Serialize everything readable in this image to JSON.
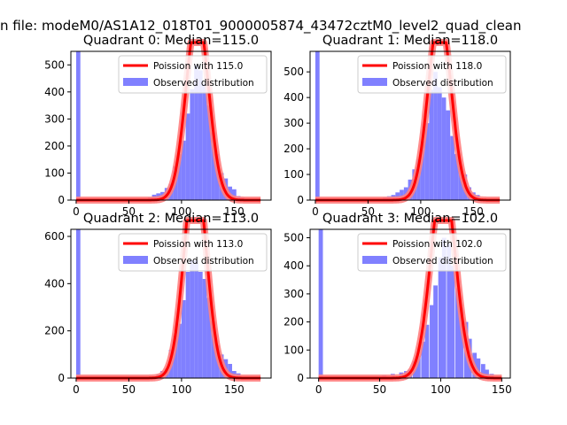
{
  "figure": {
    "suptitle": "n file: modeM0/AS1A12_018T01_9000005874_43472cztM0_level2_quad_clean"
  },
  "colors": {
    "fit": "#ff0000",
    "fit_glow": "#ff8080",
    "hist": "#8080ff",
    "axis": "#000000"
  },
  "chart_data": [
    {
      "type": "bar",
      "title": "Quadrant 0: Median=115.0",
      "legend": [
        "Poission with 115.0",
        "Observed distribution"
      ],
      "legend_loc": "upper right",
      "xlim": [
        -5,
        185
      ],
      "ylim": [
        0,
        550
      ],
      "xticks": [
        0,
        50,
        100,
        150
      ],
      "yticks": [
        0,
        100,
        200,
        300,
        400,
        500
      ],
      "bin_width": 4,
      "bins": [
        [
          0,
          550
        ],
        [
          64,
          2
        ],
        [
          68,
          10
        ],
        [
          72,
          20
        ],
        [
          76,
          25
        ],
        [
          80,
          30
        ],
        [
          84,
          45
        ],
        [
          88,
          60
        ],
        [
          92,
          125
        ],
        [
          96,
          170
        ],
        [
          100,
          220
        ],
        [
          104,
          320
        ],
        [
          108,
          410
        ],
        [
          112,
          500
        ],
        [
          116,
          480
        ],
        [
          120,
          430
        ],
        [
          124,
          350
        ],
        [
          128,
          250
        ],
        [
          132,
          170
        ],
        [
          136,
          100
        ],
        [
          140,
          80
        ],
        [
          144,
          50
        ],
        [
          148,
          40
        ],
        [
          152,
          15
        ],
        [
          156,
          10
        ]
      ],
      "fit": {
        "mu": 115,
        "scale": 18400,
        "x_range": [
          0,
          175
        ]
      }
    },
    {
      "type": "bar",
      "title": "Quadrant 1: Median=118.0",
      "legend": [
        "Poission with 118.0",
        "Observed distribution"
      ],
      "legend_loc": "upper right",
      "xlim": [
        -5,
        185
      ],
      "ylim": [
        0,
        580
      ],
      "xticks": [
        0,
        50,
        100,
        150
      ],
      "yticks": [
        0,
        100,
        200,
        300,
        400,
        500
      ],
      "bin_width": 4,
      "bins": [
        [
          0,
          580
        ],
        [
          56,
          5
        ],
        [
          64,
          10
        ],
        [
          68,
          15
        ],
        [
          72,
          20
        ],
        [
          76,
          30
        ],
        [
          80,
          40
        ],
        [
          84,
          50
        ],
        [
          88,
          80
        ],
        [
          92,
          120
        ],
        [
          96,
          160
        ],
        [
          100,
          230
        ],
        [
          104,
          300
        ],
        [
          108,
          430
        ],
        [
          112,
          500
        ],
        [
          116,
          440
        ],
        [
          120,
          400
        ],
        [
          124,
          350
        ],
        [
          128,
          250
        ],
        [
          132,
          180
        ],
        [
          136,
          130
        ],
        [
          140,
          100
        ],
        [
          144,
          50
        ],
        [
          148,
          30
        ],
        [
          152,
          20
        ],
        [
          156,
          5
        ]
      ],
      "fit": {
        "mu": 118,
        "scale": 19700,
        "x_range": [
          0,
          175
        ]
      }
    },
    {
      "type": "bar",
      "title": "Quadrant 2: Median=113.0",
      "legend": [
        "Poission with 113.0",
        "Observed distribution"
      ],
      "legend_loc": "upper right",
      "xlim": [
        -5,
        185
      ],
      "ylim": [
        0,
        630
      ],
      "xticks": [
        0,
        50,
        100,
        150
      ],
      "yticks": [
        0,
        200,
        400,
        600
      ],
      "bin_width": 4,
      "bins": [
        [
          0,
          630
        ],
        [
          70,
          5
        ],
        [
          76,
          15
        ],
        [
          80,
          30
        ],
        [
          84,
          40
        ],
        [
          88,
          120
        ],
        [
          92,
          180
        ],
        [
          96,
          230
        ],
        [
          100,
          330
        ],
        [
          104,
          450
        ],
        [
          108,
          500
        ],
        [
          112,
          500
        ],
        [
          116,
          450
        ],
        [
          120,
          420
        ],
        [
          124,
          340
        ],
        [
          128,
          240
        ],
        [
          132,
          140
        ],
        [
          136,
          100
        ],
        [
          140,
          80
        ],
        [
          144,
          60
        ],
        [
          148,
          30
        ],
        [
          152,
          20
        ],
        [
          156,
          5
        ]
      ],
      "fit": {
        "mu": 113,
        "scale": 23500,
        "x_range": [
          0,
          175
        ]
      }
    },
    {
      "type": "bar",
      "title": "Quadrant 3: Median=102.0",
      "legend": [
        "Poission with 102.0",
        "Observed distribution"
      ],
      "legend_loc": "upper right",
      "xlim": [
        -7,
        157
      ],
      "ylim": [
        0,
        530
      ],
      "xticks": [
        0,
        50,
        100,
        150
      ],
      "yticks": [
        0,
        100,
        200,
        300,
        400,
        500
      ],
      "bin_width": 3.5,
      "bins": [
        [
          0,
          530
        ],
        [
          45,
          5
        ],
        [
          52,
          10
        ],
        [
          59,
          15
        ],
        [
          66,
          20
        ],
        [
          70,
          25
        ],
        [
          73,
          30
        ],
        [
          77,
          60
        ],
        [
          80,
          80
        ],
        [
          84,
          130
        ],
        [
          87,
          190
        ],
        [
          91,
          260
        ],
        [
          94,
          330
        ],
        [
          98,
          430
        ],
        [
          101,
          500
        ],
        [
          105,
          480
        ],
        [
          108,
          400
        ],
        [
          112,
          320
        ],
        [
          115,
          250
        ],
        [
          119,
          200
        ],
        [
          122,
          140
        ],
        [
          126,
          90
        ],
        [
          129,
          70
        ],
        [
          133,
          50
        ],
        [
          136,
          30
        ],
        [
          140,
          15
        ]
      ],
      "fit": {
        "mu": 102,
        "scale": 18000,
        "x_range": [
          0,
          150
        ]
      }
    }
  ]
}
